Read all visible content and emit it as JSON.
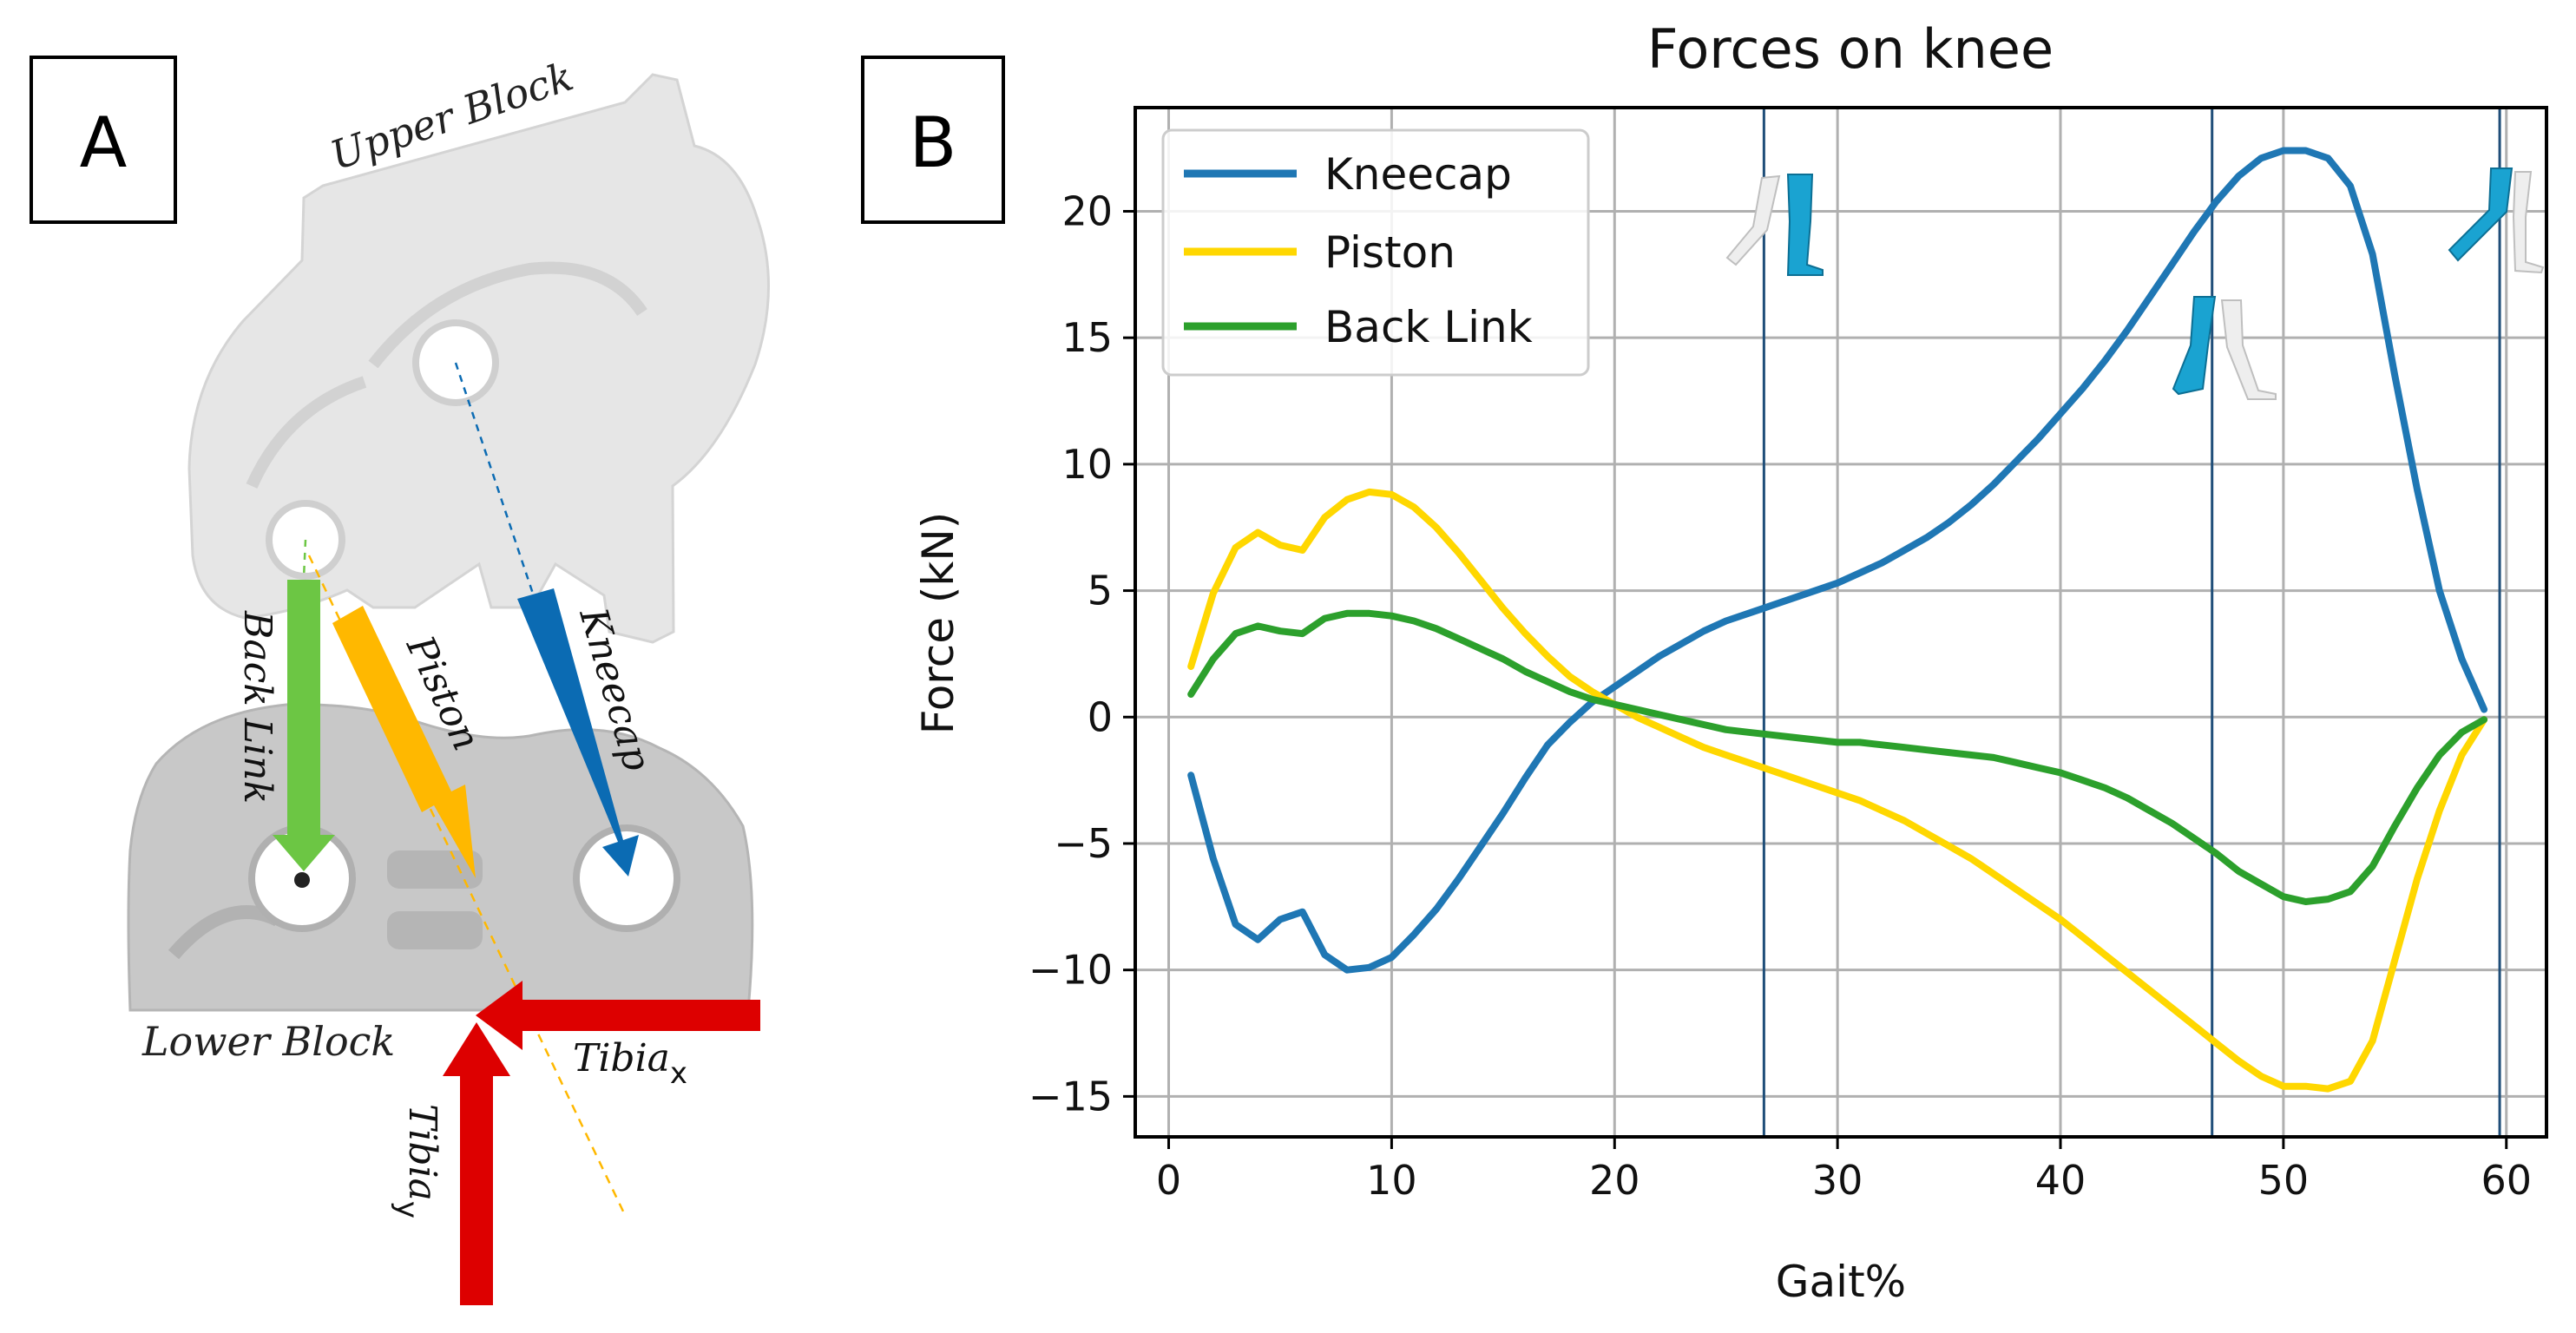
{
  "panel_a": {
    "label": "A",
    "upper_block": "Upper Block",
    "lower_block": "Lower Block",
    "arrows": {
      "back_link": "Back Link",
      "piston": "Piston",
      "kneecap": "Kneecap",
      "tibia_x_base": "Tibia",
      "tibia_x_sub": "x",
      "tibia_y_base": "Tibia",
      "tibia_y_sub": "y"
    },
    "colors": {
      "back_link": "#6cc644",
      "piston": "#ffb800",
      "kneecap": "#0b6bb3",
      "tibia": "#dd0000",
      "upper_block": "#e6e6e6",
      "lower_block": "#c8c8c8"
    }
  },
  "panel_b": {
    "label": "B"
  },
  "chart_data": {
    "type": "line",
    "title": "Forces on knee",
    "xlabel": "Gait%",
    "ylabel": "Force (kN)",
    "xlim": [
      -1.5,
      61.8
    ],
    "ylim": [
      -16.6,
      24.1
    ],
    "xticks": [
      0,
      10,
      20,
      30,
      40,
      50,
      60
    ],
    "yticks": [
      -15,
      -10,
      -5,
      0,
      5,
      10,
      15,
      20
    ],
    "grid": true,
    "legend_position": "top-left",
    "x": [
      1,
      2,
      3,
      4,
      5,
      6,
      7,
      8,
      9,
      10,
      11,
      12,
      13,
      14,
      15,
      16,
      17,
      18,
      19,
      20,
      21,
      22,
      23,
      24,
      25,
      26,
      27,
      28,
      29,
      30,
      31,
      32,
      33,
      34,
      35,
      36,
      37,
      38,
      39,
      40,
      41,
      42,
      43,
      44,
      45,
      46,
      47,
      48,
      49,
      50,
      51,
      52,
      53,
      54,
      55,
      56,
      57,
      58,
      59
    ],
    "series": [
      {
        "name": "Kneecap",
        "color": "#1f77b4",
        "values": [
          -2.3,
          -5.6,
          -8.2,
          -8.8,
          -8.0,
          -7.7,
          -9.4,
          -10.0,
          -9.9,
          -9.5,
          -8.6,
          -7.6,
          -6.4,
          -5.1,
          -3.8,
          -2.4,
          -1.1,
          -0.2,
          0.6,
          1.2,
          1.8,
          2.4,
          2.9,
          3.4,
          3.8,
          4.1,
          4.4,
          4.7,
          5.0,
          5.3,
          5.7,
          6.1,
          6.6,
          7.1,
          7.7,
          8.4,
          9.2,
          10.1,
          11.0,
          12.0,
          13.0,
          14.1,
          15.3,
          16.6,
          17.9,
          19.2,
          20.4,
          21.4,
          22.1,
          22.4,
          22.4,
          22.1,
          21.0,
          18.3,
          13.5,
          9.0,
          5.0,
          2.3,
          0.3
        ]
      },
      {
        "name": "Piston",
        "color": "#ffd700",
        "values": [
          2.0,
          4.9,
          6.7,
          7.3,
          6.8,
          6.6,
          7.9,
          8.6,
          8.9,
          8.8,
          8.3,
          7.5,
          6.5,
          5.4,
          4.3,
          3.3,
          2.4,
          1.6,
          1.0,
          0.5,
          0.0,
          -0.4,
          -0.8,
          -1.2,
          -1.5,
          -1.8,
          -2.1,
          -2.4,
          -2.7,
          -3.0,
          -3.3,
          -3.7,
          -4.1,
          -4.6,
          -5.1,
          -5.6,
          -6.2,
          -6.8,
          -7.4,
          -8.0,
          -8.7,
          -9.4,
          -10.1,
          -10.8,
          -11.5,
          -12.2,
          -12.9,
          -13.6,
          -14.2,
          -14.6,
          -14.6,
          -14.7,
          -14.4,
          -12.8,
          -9.6,
          -6.4,
          -3.7,
          -1.5,
          -0.1
        ]
      },
      {
        "name": "Back Link",
        "color": "#2ca02c",
        "values": [
          0.9,
          2.3,
          3.3,
          3.6,
          3.4,
          3.3,
          3.9,
          4.1,
          4.1,
          4.0,
          3.8,
          3.5,
          3.1,
          2.7,
          2.3,
          1.8,
          1.4,
          1.0,
          0.7,
          0.5,
          0.3,
          0.1,
          -0.1,
          -0.3,
          -0.5,
          -0.6,
          -0.7,
          -0.8,
          -0.9,
          -1.0,
          -1.0,
          -1.1,
          -1.2,
          -1.3,
          -1.4,
          -1.5,
          -1.6,
          -1.8,
          -2.0,
          -2.2,
          -2.5,
          -2.8,
          -3.2,
          -3.7,
          -4.2,
          -4.8,
          -5.4,
          -6.1,
          -6.6,
          -7.1,
          -7.3,
          -7.2,
          -6.9,
          -5.9,
          -4.3,
          -2.8,
          -1.5,
          -0.6,
          -0.1
        ]
      }
    ],
    "vertical_markers": [
      26.7,
      46.8,
      59.7
    ],
    "marker_color": "#1f4e79"
  }
}
